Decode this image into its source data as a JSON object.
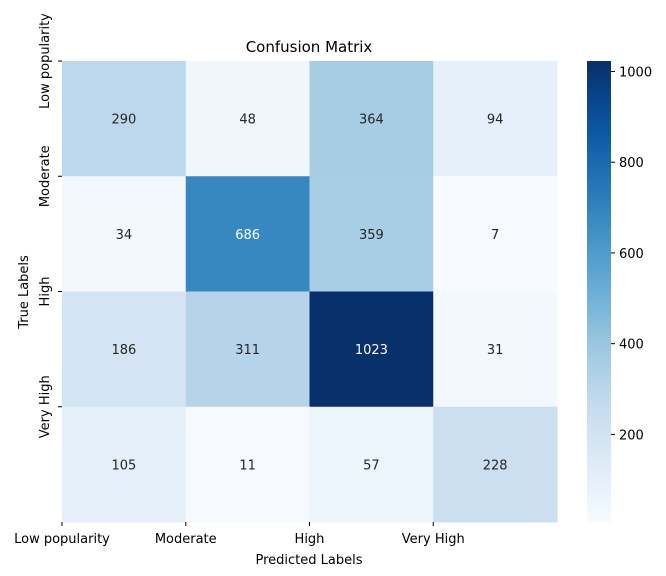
{
  "chart_data": {
    "type": "heatmap",
    "title": "Confusion Matrix",
    "xlabel": "Predicted Labels",
    "ylabel": "True Labels",
    "x_categories": [
      "Low popularity",
      "Moderate",
      "High",
      "Very High"
    ],
    "y_categories": [
      "Low popularity",
      "Moderate",
      "High",
      "Very High"
    ],
    "matrix": [
      [
        290,
        48,
        364,
        94
      ],
      [
        34,
        686,
        359,
        7
      ],
      [
        186,
        311,
        1023,
        31
      ],
      [
        105,
        11,
        57,
        228
      ]
    ],
    "colormap": "Blues",
    "colorbar": {
      "min": 7,
      "max": 1023,
      "ticks": [
        200,
        400,
        600,
        800,
        1000
      ]
    },
    "colors": {
      "low": "#f7fbff",
      "high": "#08306b"
    }
  }
}
